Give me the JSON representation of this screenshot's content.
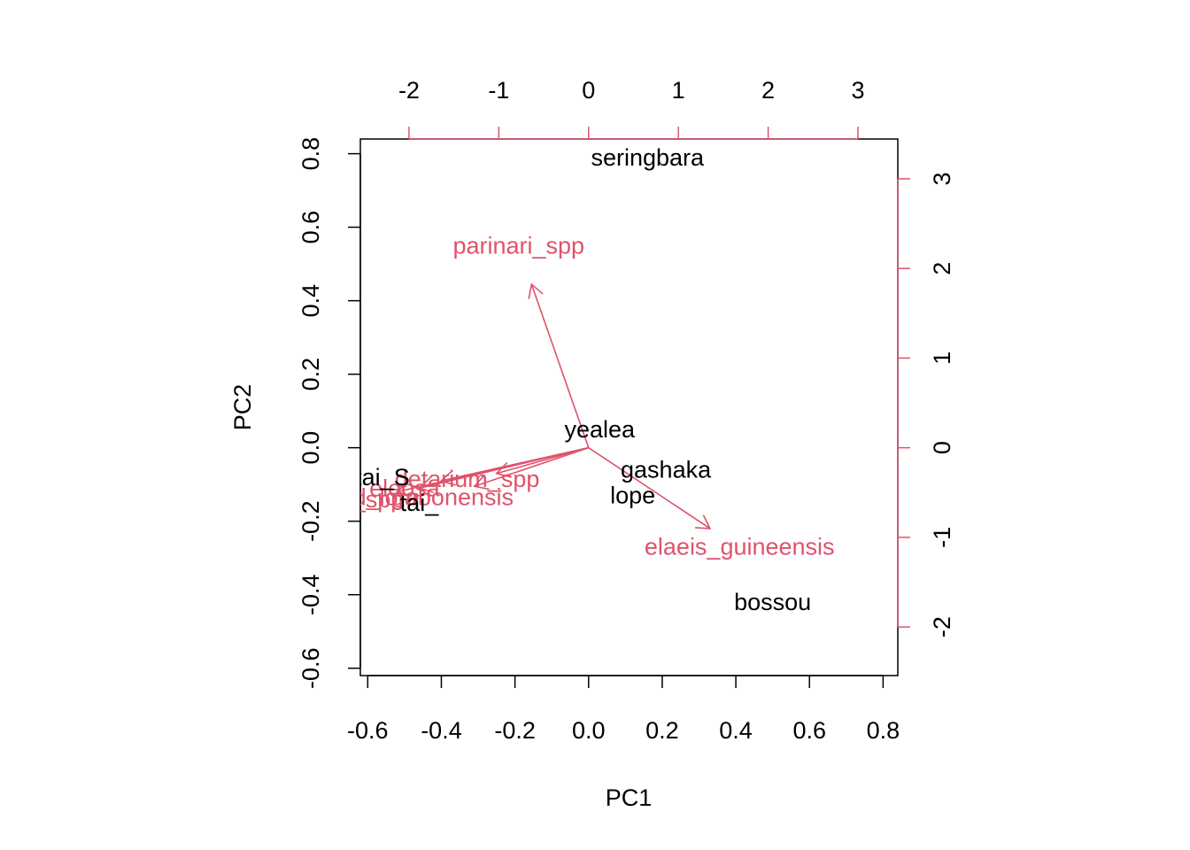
{
  "chart_data": {
    "type": "scatter",
    "subtype": "biplot",
    "title": "",
    "xlabel": "PC1",
    "ylabel": "PC2",
    "xlim": [
      -0.62,
      0.84
    ],
    "ylim": [
      -0.62,
      0.84
    ],
    "xticks": [
      -0.6,
      -0.4,
      -0.2,
      0.0,
      0.2,
      0.4,
      0.6,
      0.8
    ],
    "yticks": [
      -0.6,
      -0.4,
      -0.2,
      0.0,
      0.2,
      0.4,
      0.6,
      0.8
    ],
    "secondary_axes": {
      "color": "#DF536B",
      "top_ticks": [
        -2,
        -1,
        0,
        1,
        2,
        3
      ],
      "right_ticks": [
        -2,
        -1,
        0,
        1,
        2,
        3
      ],
      "scale": 4.1
    },
    "observations": {
      "color": "#000000",
      "points": [
        {
          "label": "seringbara",
          "x": 0.16,
          "y": 0.79
        },
        {
          "label": "yealea",
          "x": 0.03,
          "y": 0.05
        },
        {
          "label": "gashaka",
          "x": 0.21,
          "y": -0.06
        },
        {
          "label": "lope",
          "x": 0.12,
          "y": -0.13
        },
        {
          "label": "bossou",
          "x": 0.5,
          "y": -0.42
        },
        {
          "label": "tai_S",
          "x": -0.56,
          "y": -0.08
        },
        {
          "label": "tai_",
          "x": -0.46,
          "y": -0.15
        }
      ]
    },
    "variables": {
      "color": "#DF536B",
      "points": [
        {
          "label": "parinari_spp",
          "x": -0.155,
          "y": 0.445,
          "lx": -0.19,
          "ly": 0.55
        },
        {
          "label": "elaeis_guineensis",
          "x": 0.33,
          "y": -0.22,
          "lx": 0.41,
          "ly": -0.27
        },
        {
          "label": "detarium_spp",
          "x": -0.25,
          "y": -0.07,
          "lx": -0.33,
          "ly": -0.085
        },
        {
          "label": "gabonensis",
          "x": -0.31,
          "y": -0.105,
          "lx": -0.37,
          "ly": -0.135
        },
        {
          "label": "eleosa",
          "x": -0.4,
          "y": -0.09,
          "lx": -0.5,
          "ly": -0.11
        },
        {
          "label": "d_lore",
          "x": -0.46,
          "y": -0.11,
          "lx": -0.55,
          "ly": -0.135
        },
        {
          "label": "a_spp",
          "x": -0.52,
          "y": -0.12,
          "lx": -0.59,
          "ly": -0.14
        }
      ]
    }
  }
}
